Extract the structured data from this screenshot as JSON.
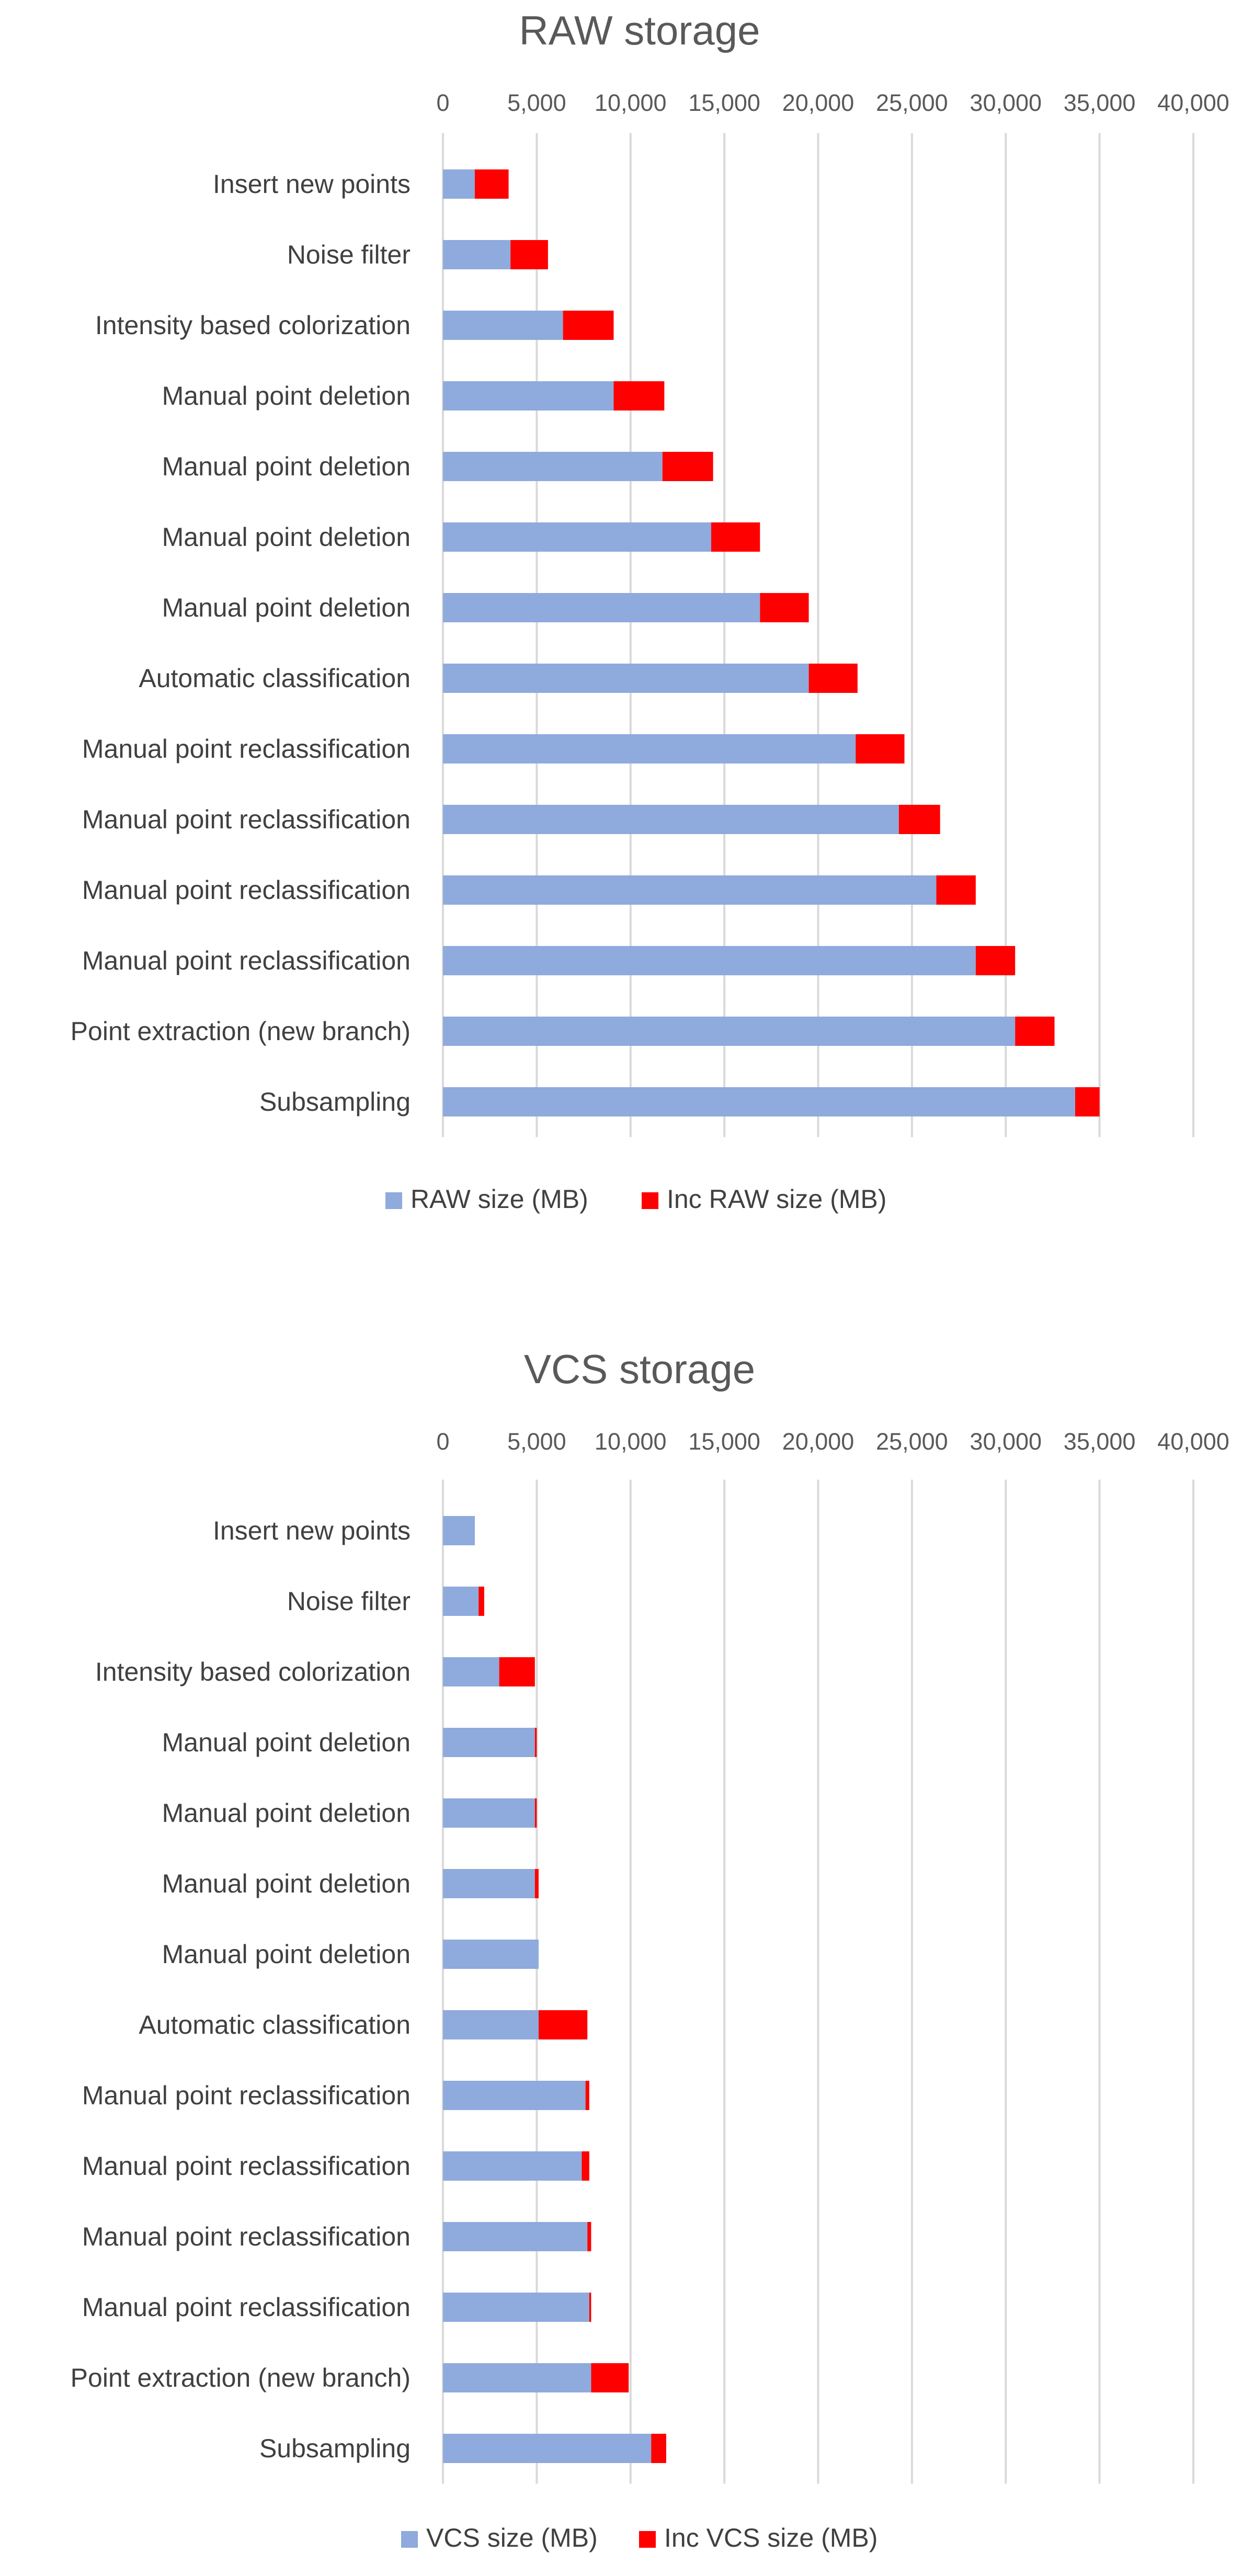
{
  "chart_data": [
    {
      "type": "bar",
      "orientation": "horizontal",
      "stacked": true,
      "title": "RAW storage",
      "xlim": [
        0,
        40000
      ],
      "ticks": [
        "0",
        "5,000",
        "10,000",
        "15,000",
        "20,000",
        "25,000",
        "30,000",
        "35,000",
        "40,000"
      ],
      "grid": true,
      "legend_position": "bottom",
      "categories": [
        "Insert new points",
        "Noise filter",
        "Intensity based colorization",
        "Manual point deletion",
        "Manual point deletion",
        "Manual point deletion",
        "Manual point deletion",
        "Automatic classification",
        "Manual point reclassification",
        "Manual point reclassification",
        "Manual point reclassification",
        "Manual point reclassification",
        "Point extraction (new branch)",
        "Subsampling"
      ],
      "series": [
        {
          "name": "RAW size (MB)",
          "color": "#8faadc",
          "values": [
            1700,
            3600,
            6400,
            9100,
            11700,
            14300,
            16900,
            19500,
            22000,
            24300,
            26300,
            28400,
            30500,
            33700
          ]
        },
        {
          "name": "Inc RAW size (MB)",
          "color": "#ff0000",
          "values": [
            1800,
            2000,
            2700,
            2700,
            2700,
            2600,
            2600,
            2600,
            2600,
            2200,
            2100,
            2100,
            2100,
            1300
          ]
        }
      ]
    },
    {
      "type": "bar",
      "orientation": "horizontal",
      "stacked": true,
      "title": "VCS storage",
      "xlim": [
        0,
        40000
      ],
      "ticks": [
        "0",
        "5,000",
        "10,000",
        "15,000",
        "20,000",
        "25,000",
        "30,000",
        "35,000",
        "40,000"
      ],
      "grid": true,
      "legend_position": "bottom",
      "categories": [
        "Insert new points",
        "Noise filter",
        "Intensity based colorization",
        "Manual point deletion",
        "Manual point deletion",
        "Manual point deletion",
        "Manual point deletion",
        "Automatic classification",
        "Manual point reclassification",
        "Manual point reclassification",
        "Manual point reclassification",
        "Manual point reclassification",
        "Point extraction (new branch)",
        "Subsampling"
      ],
      "series": [
        {
          "name": "VCS size (MB)",
          "color": "#8faadc",
          "values": [
            1700,
            1900,
            3000,
            4900,
            4900,
            4900,
            5100,
            5100,
            7600,
            7400,
            7700,
            7800,
            7900,
            11100
          ]
        },
        {
          "name": "Inc VCS size (MB)",
          "color": "#ff0000",
          "values": [
            0,
            300,
            1900,
            100,
            100,
            200,
            0,
            2600,
            200,
            400,
            200,
            100,
            2000,
            800
          ]
        }
      ]
    }
  ]
}
